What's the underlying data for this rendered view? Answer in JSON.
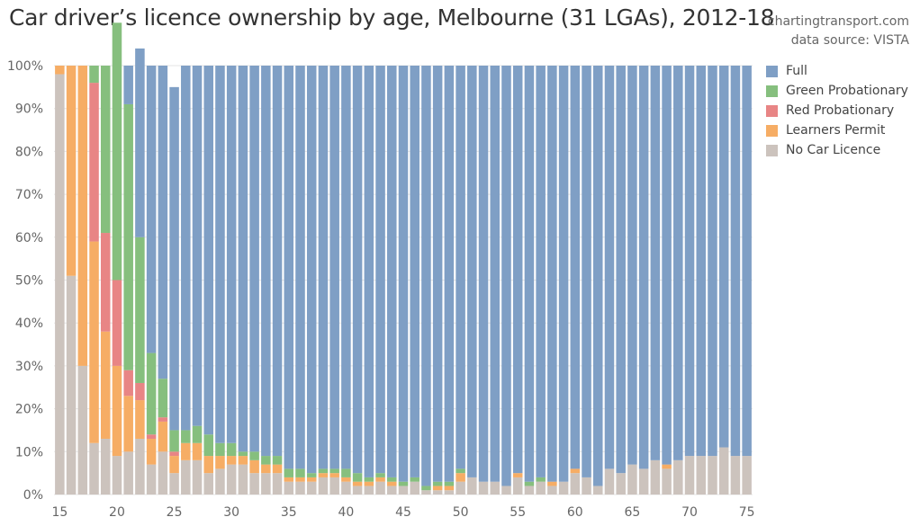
{
  "title": "Car driver’s licence ownership by age, Melbourne (31 LGAs), 2012-18",
  "credit": {
    "site": "chartingtransport.com",
    "source": "data source: VISTA"
  },
  "chart_data": {
    "type": "bar",
    "stacked": true,
    "normalized": true,
    "xlabel": "",
    "ylabel": "",
    "ylim": [
      0,
      100
    ],
    "y_ticks": [
      "0%",
      "10%",
      "20%",
      "30%",
      "40%",
      "50%",
      "60%",
      "70%",
      "80%",
      "90%",
      "100%"
    ],
    "x_ticks": [
      15,
      20,
      25,
      30,
      35,
      40,
      45,
      50,
      55,
      60,
      65,
      70,
      75
    ],
    "grid": true,
    "legend_position": "right",
    "categories": [
      15,
      16,
      17,
      18,
      19,
      20,
      21,
      22,
      23,
      24,
      25,
      26,
      27,
      28,
      29,
      30,
      31,
      32,
      33,
      34,
      35,
      36,
      37,
      38,
      39,
      40,
      41,
      42,
      43,
      44,
      45,
      46,
      47,
      48,
      49,
      50,
      51,
      52,
      53,
      54,
      55,
      56,
      57,
      58,
      59,
      60,
      61,
      62,
      63,
      64,
      65,
      66,
      67,
      68,
      69,
      70,
      71,
      72,
      73,
      74,
      75
    ],
    "stack_order": [
      "No Car Licence",
      "Learners Permit",
      "Red Probationary",
      "Green Probationary",
      "Full"
    ],
    "series": [
      {
        "name": "Full",
        "color": "#7f9fc5",
        "values": [
          0,
          0,
          0,
          0,
          0,
          0,
          9,
          44,
          67,
          73,
          80,
          85,
          84,
          86,
          88,
          88,
          90,
          90,
          91,
          91,
          94,
          94,
          95,
          94,
          94,
          94,
          95,
          96,
          95,
          96,
          97,
          96,
          98,
          97,
          97,
          94,
          96,
          97,
          97,
          98,
          95,
          97,
          96,
          97,
          97,
          94,
          96,
          98,
          94,
          95,
          93,
          94,
          92,
          93,
          92,
          91,
          91,
          91,
          89,
          91,
          91
        ]
      },
      {
        "name": "Green Probationary",
        "color": "#86bf7e",
        "values": [
          0,
          0,
          0,
          4,
          39,
          60,
          62,
          34,
          19,
          9,
          5,
          3,
          4,
          5,
          3,
          3,
          1,
          2,
          2,
          2,
          2,
          2,
          1,
          1,
          1,
          2,
          2,
          1,
          1,
          1,
          1,
          1,
          1,
          1,
          1,
          1,
          0,
          0,
          0,
          0,
          0,
          1,
          1,
          0,
          0,
          0,
          0,
          0,
          0,
          0,
          0,
          0,
          0,
          0,
          0,
          0,
          0,
          0,
          0,
          0,
          0
        ]
      },
      {
        "name": "Red Probationary",
        "color": "#e88585",
        "values": [
          0,
          0,
          0,
          37,
          23,
          20,
          6,
          4,
          1,
          1,
          1,
          0,
          0,
          0,
          0,
          0,
          0,
          0,
          0,
          0,
          0,
          0,
          0,
          0,
          0,
          0,
          0,
          0,
          0,
          0,
          0,
          0,
          0,
          0,
          0,
          0,
          0,
          0,
          0,
          0,
          0,
          0,
          0,
          0,
          0,
          0,
          0,
          0,
          0,
          0,
          0,
          0,
          0,
          0,
          0,
          0,
          0,
          0,
          0,
          0,
          0
        ]
      },
      {
        "name": "Learners Permit",
        "color": "#f6ad65",
        "values": [
          2,
          49,
          70,
          47,
          25,
          21,
          13,
          9,
          6,
          7,
          4,
          4,
          4,
          4,
          3,
          2,
          2,
          3,
          2,
          2,
          1,
          1,
          1,
          1,
          1,
          1,
          1,
          1,
          1,
          1,
          0,
          0,
          0,
          1,
          1,
          2,
          0,
          0,
          0,
          0,
          1,
          0,
          0,
          1,
          0,
          1,
          0,
          0,
          0,
          0,
          0,
          0,
          0,
          1,
          0,
          0,
          0,
          0,
          0,
          0,
          0
        ]
      },
      {
        "name": "No Car Licence",
        "color": "#ccc3bd",
        "values": [
          98,
          51,
          30,
          12,
          13,
          9,
          10,
          13,
          7,
          10,
          5,
          8,
          8,
          5,
          6,
          7,
          7,
          5,
          5,
          5,
          3,
          3,
          3,
          4,
          4,
          3,
          2,
          2,
          3,
          2,
          2,
          3,
          1,
          1,
          1,
          3,
          4,
          3,
          3,
          2,
          4,
          2,
          3,
          2,
          3,
          5,
          4,
          2,
          6,
          5,
          7,
          6,
          8,
          6,
          8,
          9,
          9,
          9,
          11,
          9,
          9
        ]
      }
    ]
  }
}
